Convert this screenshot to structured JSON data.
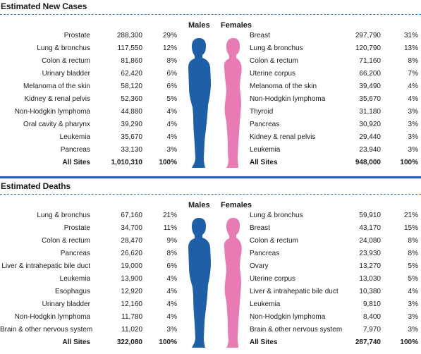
{
  "new_cases": {
    "title": "Estimated New Cases",
    "males_label": "Males",
    "females_label": "Females",
    "males": [
      {
        "site": "Prostate",
        "count": "288,300",
        "pct": "29%"
      },
      {
        "site": "Lung & bronchus",
        "count": "117,550",
        "pct": "12%"
      },
      {
        "site": "Colon & rectum",
        "count": "81,860",
        "pct": "8%"
      },
      {
        "site": "Urinary bladder",
        "count": "62,420",
        "pct": "6%"
      },
      {
        "site": "Melanoma of the skin",
        "count": "58,120",
        "pct": "6%"
      },
      {
        "site": "Kidney & renal pelvis",
        "count": "52,360",
        "pct": "5%"
      },
      {
        "site": "Non-Hodgkin lymphoma",
        "count": "44,880",
        "pct": "4%"
      },
      {
        "site": "Oral cavity & pharynx",
        "count": "39,290",
        "pct": "4%"
      },
      {
        "site": "Leukemia",
        "count": "35,670",
        "pct": "4%"
      },
      {
        "site": "Pancreas",
        "count": "33,130",
        "pct": "3%"
      },
      {
        "site": "All Sites",
        "count": "1,010,310",
        "pct": "100%"
      }
    ],
    "females": [
      {
        "site": "Breast",
        "count": "297,790",
        "pct": "31%"
      },
      {
        "site": "Lung & bronchus",
        "count": "120,790",
        "pct": "13%"
      },
      {
        "site": "Colon & rectum",
        "count": "71,160",
        "pct": "8%"
      },
      {
        "site": "Uterine corpus",
        "count": "66,200",
        "pct": "7%"
      },
      {
        "site": "Melanoma of the skin",
        "count": "39,490",
        "pct": "4%"
      },
      {
        "site": "Non-Hodgkin lymphoma",
        "count": "35,670",
        "pct": "4%"
      },
      {
        "site": "Thyroid",
        "count": "31,180",
        "pct": "3%"
      },
      {
        "site": "Pancreas",
        "count": "30,920",
        "pct": "3%"
      },
      {
        "site": "Kidney & renal pelvis",
        "count": "29,440",
        "pct": "3%"
      },
      {
        "site": "Leukemia",
        "count": "23,940",
        "pct": "3%"
      },
      {
        "site": "All Sites",
        "count": "948,000",
        "pct": "100%"
      }
    ]
  },
  "deaths": {
    "title": "Estimated Deaths",
    "males_label": "Males",
    "females_label": "Females",
    "males": [
      {
        "site": "Lung & bronchus",
        "count": "67,160",
        "pct": "21%"
      },
      {
        "site": "Prostate",
        "count": "34,700",
        "pct": "11%"
      },
      {
        "site": "Colon & rectum",
        "count": "28,470",
        "pct": "9%"
      },
      {
        "site": "Pancreas",
        "count": "26,620",
        "pct": "8%"
      },
      {
        "site": "Liver & intrahepatic bile duct",
        "count": "19,000",
        "pct": "6%"
      },
      {
        "site": "Leukemia",
        "count": "13,900",
        "pct": "4%"
      },
      {
        "site": "Esophagus",
        "count": "12,920",
        "pct": "4%"
      },
      {
        "site": "Urinary bladder",
        "count": "12,160",
        "pct": "4%"
      },
      {
        "site": "Non-Hodgkin lymphoma",
        "count": "11,780",
        "pct": "4%"
      },
      {
        "site": "Brain & other nervous system",
        "count": "11,020",
        "pct": "3%"
      },
      {
        "site": "All Sites",
        "count": "322,080",
        "pct": "100%"
      }
    ],
    "females": [
      {
        "site": "Lung & bronchus",
        "count": "59,910",
        "pct": "21%"
      },
      {
        "site": "Breast",
        "count": "43,170",
        "pct": "15%"
      },
      {
        "site": "Colon & rectum",
        "count": "24,080",
        "pct": "8%"
      },
      {
        "site": "Pancreas",
        "count": "23,930",
        "pct": "8%"
      },
      {
        "site": "Ovary",
        "count": "13,270",
        "pct": "5%"
      },
      {
        "site": "Uterine corpus",
        "count": "13,030",
        "pct": "5%"
      },
      {
        "site": "Liver & intrahepatic bile duct",
        "count": "10,380",
        "pct": "4%"
      },
      {
        "site": "Leukemia",
        "count": "9,810",
        "pct": "3%"
      },
      {
        "site": "Non-Hodgkin lymphoma",
        "count": "8,400",
        "pct": "3%"
      },
      {
        "site": "Brain & other nervous system",
        "count": "7,970",
        "pct": "3%"
      },
      {
        "site": "All Sites",
        "count": "287,740",
        "pct": "100%"
      }
    ]
  },
  "colors": {
    "male_figure": "#1f5fa8",
    "female_figure": "#e87ab4",
    "divider": "#1f5fa8",
    "dash_line": "#2f7fc1"
  },
  "icons": {
    "male": "male-silhouette-icon",
    "female": "female-silhouette-icon"
  }
}
